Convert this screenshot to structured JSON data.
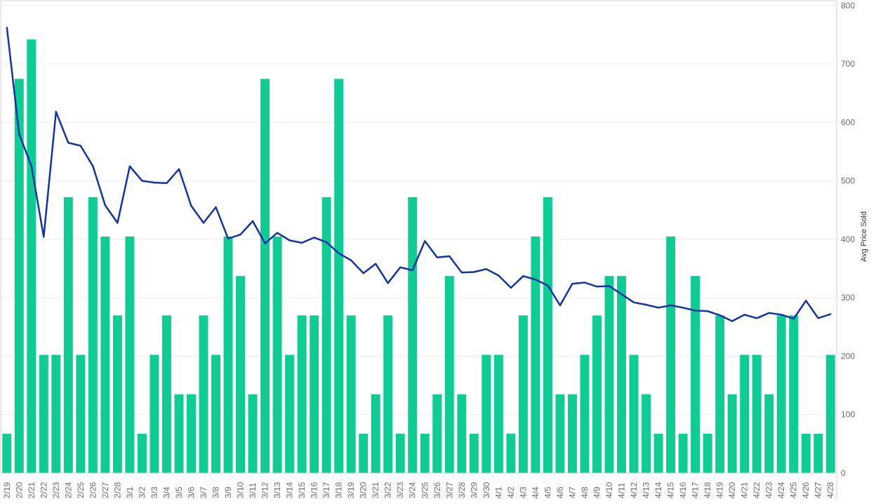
{
  "colors": {
    "bar": "#0fcc95",
    "line": "#1133a8",
    "gridline": "#ececec",
    "axis": "#d4d4d4",
    "tick_text": "#6b6b6b"
  },
  "chart_data": {
    "type": "bar",
    "combo": "bar-with-line",
    "categories": [
      "2/19",
      "2/20",
      "2/21",
      "2/22",
      "2/23",
      "2/24",
      "2/25",
      "2/26",
      "2/27",
      "2/28",
      "3/1",
      "3/2",
      "3/3",
      "3/4",
      "3/5",
      "3/6",
      "3/7",
      "3/8",
      "3/9",
      "3/10",
      "3/11",
      "3/12",
      "3/13",
      "3/14",
      "3/15",
      "3/16",
      "3/17",
      "3/18",
      "3/19",
      "3/20",
      "3/21",
      "3/22",
      "3/23",
      "3/24",
      "3/25",
      "3/26",
      "3/27",
      "3/28",
      "3/29",
      "3/30",
      "4/1",
      "4/2",
      "4/3",
      "4/4",
      "4/5",
      "4/6",
      "4/7",
      "4/8",
      "4/9",
      "4/10",
      "4/11",
      "4/12",
      "4/13",
      "4/14",
      "4/15",
      "4/16",
      "4/17",
      "4/18",
      "4/19",
      "4/20",
      "4/21",
      "4/22",
      "4/23",
      "4/24",
      "4/25",
      "4/26",
      "4/27",
      "4/28"
    ],
    "series": [
      {
        "kind": "bar",
        "axis": "unlabeled",
        "values": [
          1,
          10,
          11,
          3,
          3,
          7,
          3,
          7,
          6,
          4,
          6,
          1,
          3,
          4,
          2,
          2,
          4,
          3,
          6,
          5,
          2,
          10,
          6,
          3,
          4,
          4,
          7,
          10,
          4,
          1,
          2,
          4,
          1,
          7,
          1,
          2,
          5,
          2,
          1,
          3,
          3,
          1,
          4,
          6,
          7,
          2,
          2,
          3,
          4,
          5,
          5,
          3,
          2,
          1,
          6,
          1,
          5,
          1,
          4,
          2,
          3,
          3,
          2,
          4,
          4,
          1,
          1,
          3
        ]
      },
      {
        "kind": "line",
        "axis": "right",
        "values": [
          762,
          580,
          525,
          404,
          618,
          565,
          560,
          525,
          458,
          428,
          525,
          500,
          497,
          496,
          520,
          457,
          428,
          455,
          401,
          408,
          431,
          393,
          411,
          398,
          394,
          403,
          395,
          376,
          364,
          342,
          358,
          325,
          352,
          347,
          397,
          369,
          371,
          343,
          344,
          349,
          338,
          317,
          337,
          331,
          321,
          287,
          324,
          326,
          319,
          320,
          306,
          292,
          288,
          283,
          287,
          283,
          278,
          277,
          270,
          260,
          271,
          265,
          274,
          271,
          264,
          295,
          265,
          272
        ]
      }
    ],
    "right_axis": {
      "label": "Avg Price Sold",
      "ylim": [
        0,
        800
      ],
      "ticks": [
        "0",
        "100",
        "200",
        "300",
        "400",
        "500",
        "600",
        "700",
        "800"
      ]
    },
    "grid": true,
    "legend": "none"
  }
}
